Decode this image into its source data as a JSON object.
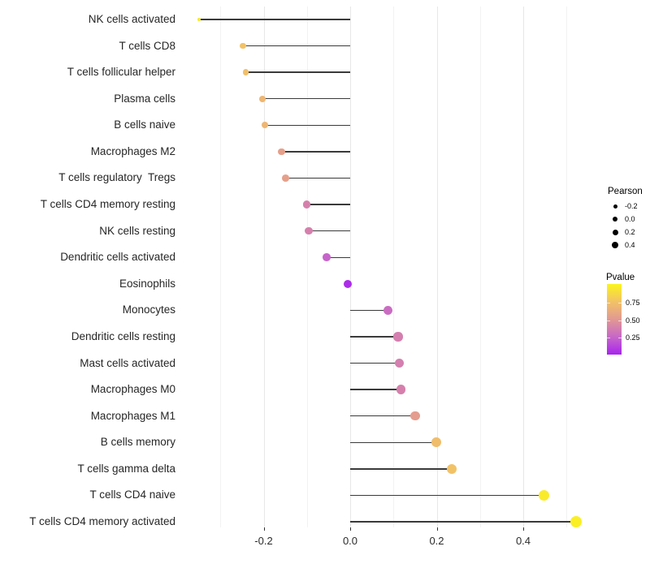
{
  "chart_data": {
    "type": "lollipop",
    "orientation": "horizontal",
    "title": "",
    "xlabel": "",
    "ylabel": "",
    "xlim": [
      -0.36,
      0.55
    ],
    "x_ticks": [
      -0.2,
      0.0,
      0.2,
      0.4
    ],
    "x_tick_labels": [
      "-0.2",
      "0.0",
      "0.2",
      "0.4"
    ],
    "grid": "on",
    "baseline": 0.0,
    "points": [
      {
        "label": "NK cells activated",
        "pearson": -0.35,
        "pvalue": 0.05
      },
      {
        "label": "T cells CD8",
        "pearson": -0.248,
        "pvalue": 0.25
      },
      {
        "label": "T cells follicular helper",
        "pearson": -0.241,
        "pvalue": 0.27
      },
      {
        "label": "Plasma cells",
        "pearson": -0.203,
        "pvalue": 0.32
      },
      {
        "label": "B cells naive",
        "pearson": -0.197,
        "pvalue": 0.32
      },
      {
        "label": "Macrophages M2",
        "pearson": -0.159,
        "pvalue": 0.45
      },
      {
        "label": "T cells regulatory  Tregs",
        "pearson": -0.149,
        "pvalue": 0.45
      },
      {
        "label": "T cells CD4 memory resting",
        "pearson": -0.101,
        "pvalue": 0.62
      },
      {
        "label": "NK cells resting",
        "pearson": -0.096,
        "pvalue": 0.62
      },
      {
        "label": "Dendritic cells activated",
        "pearson": -0.054,
        "pvalue": 0.76
      },
      {
        "label": "Eosinophils",
        "pearson": -0.005,
        "pvalue": 0.97
      },
      {
        "label": "Monocytes",
        "pearson": 0.088,
        "pvalue": 0.72
      },
      {
        "label": "Dendritic cells resting",
        "pearson": 0.111,
        "pvalue": 0.63
      },
      {
        "label": "Mast cells activated",
        "pearson": 0.114,
        "pvalue": 0.63
      },
      {
        "label": "Macrophages M0",
        "pearson": 0.118,
        "pvalue": 0.62
      },
      {
        "label": "Macrophages M1",
        "pearson": 0.15,
        "pvalue": 0.47
      },
      {
        "label": "B cells memory",
        "pearson": 0.199,
        "pvalue": 0.28
      },
      {
        "label": "T cells gamma delta",
        "pearson": 0.235,
        "pvalue": 0.25
      },
      {
        "label": "T cells CD4 naive",
        "pearson": 0.448,
        "pvalue": 0.05
      },
      {
        "label": "T cells CD4 memory activated",
        "pearson": 0.522,
        "pvalue": 0.03
      }
    ],
    "legend_size": {
      "title": "Pearson",
      "entries": [
        "-0.2",
        "0.0",
        "0.2",
        "0.4"
      ],
      "entry_values": [
        -0.2,
        0.0,
        0.2,
        0.4
      ]
    },
    "legend_color": {
      "title": "Pvalue",
      "entries": [
        "0.75",
        "0.50",
        "0.25"
      ],
      "entry_values": [
        0.75,
        0.5,
        0.25
      ],
      "gradient_stops": [
        "#A824EE",
        "#C767C8",
        "#E29893",
        "#F2C266",
        "#FBF51C"
      ]
    },
    "colors": {
      "stick": "#3a3a3a",
      "grid_major": "#e7e7e7",
      "grid_minor": "#f2f2f2",
      "legend_dot": "#000000"
    }
  }
}
